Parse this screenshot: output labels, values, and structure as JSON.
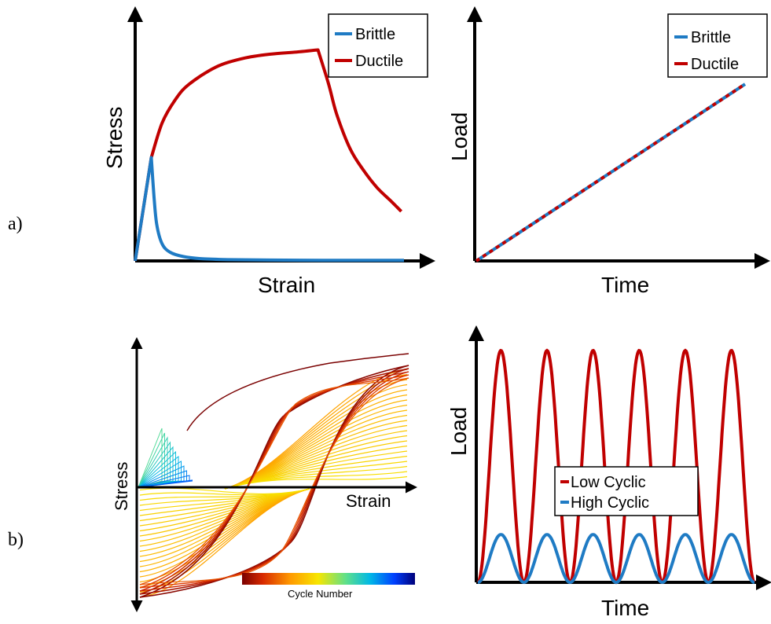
{
  "panel_labels": [
    "a)",
    "b)"
  ],
  "colors": {
    "brittle": "#1f7bc4",
    "ductile": "#c00000",
    "axis": "#000000"
  },
  "chart_data": [
    {
      "id": "a-left",
      "type": "line",
      "xlabel": "Strain",
      "ylabel": "Stress",
      "legend": {
        "position": "top-right",
        "entries": [
          "Brittle",
          "Ductile"
        ]
      },
      "xlim": [
        0,
        1.0
      ],
      "ylim": [
        0,
        1.0
      ],
      "series": [
        {
          "name": "Brittle",
          "color": "#1f7bc4",
          "x": [
            0,
            0.06,
            0.07,
            0.08,
            0.1,
            0.13,
            0.18,
            0.25,
            0.35,
            0.5,
            0.7,
            1.0
          ],
          "y": [
            0,
            0.48,
            0.3,
            0.17,
            0.08,
            0.04,
            0.02,
            0.01,
            0.006,
            0.004,
            0.003,
            0.003
          ]
        },
        {
          "name": "Ductile",
          "color": "#c00000",
          "x": [
            0,
            0.06,
            0.1,
            0.15,
            0.2,
            0.3,
            0.4,
            0.5,
            0.6,
            0.68,
            0.72,
            0.75,
            0.8,
            0.85,
            0.9,
            0.95,
            0.99
          ],
          "y": [
            0,
            0.48,
            0.64,
            0.75,
            0.82,
            0.9,
            0.94,
            0.96,
            0.97,
            0.98,
            0.82,
            0.68,
            0.52,
            0.42,
            0.34,
            0.28,
            0.23
          ]
        }
      ]
    },
    {
      "id": "a-right",
      "type": "line",
      "xlabel": "Time",
      "ylabel": "Load",
      "legend": {
        "position": "top-right",
        "entries": [
          "Brittle",
          "Ductile"
        ]
      },
      "xlim": [
        0,
        1.0
      ],
      "ylim": [
        0,
        1.0
      ],
      "series": [
        {
          "name": "Brittle",
          "color": "#1f7bc4",
          "x": [
            0,
            0.95
          ],
          "y": [
            0,
            0.74
          ]
        },
        {
          "name": "Ductile",
          "color": "#c00000",
          "x": [
            0,
            0.95
          ],
          "y": [
            0,
            0.74
          ]
        }
      ]
    },
    {
      "id": "b-left",
      "type": "line",
      "xlabel": "Strain",
      "ylabel": "Stress",
      "colorbar": {
        "label": "Cycle Number",
        "colors": [
          "#7a0000",
          "#d82a00",
          "#ff9a00",
          "#f7e600",
          "#5fe08a",
          "#00b8e6",
          "#0040ff",
          "#00007a"
        ]
      },
      "description": "hysteresis loops"
    },
    {
      "id": "b-right",
      "type": "line",
      "xlabel": "Time",
      "ylabel": "Load",
      "legend": {
        "position": "center",
        "entries": [
          "Low Cyclic",
          "High Cyclic"
        ]
      },
      "xlim": [
        0,
        1.0
      ],
      "ylim": [
        0,
        1.0
      ],
      "series": [
        {
          "name": "Low Cyclic",
          "color": "#c00000",
          "cycles": 6,
          "amplitude": 0.97
        },
        {
          "name": "High Cyclic",
          "color": "#1f7bc4",
          "cycles": 6,
          "amplitude": 0.2
        }
      ]
    }
  ]
}
